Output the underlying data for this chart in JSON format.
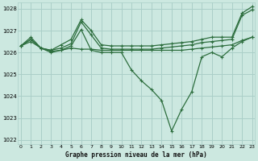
{
  "xlabel": "Graphe pression niveau de la mer (hPa)",
  "bg_color": "#cce8e0",
  "grid_color": "#aacfc8",
  "line_color": "#2d6e3e",
  "ylim": [
    1021.8,
    1028.3
  ],
  "xlim": [
    0,
    23
  ],
  "yticks": [
    1022,
    1023,
    1024,
    1025,
    1026,
    1027,
    1028
  ],
  "xticks": [
    0,
    1,
    2,
    3,
    4,
    5,
    6,
    7,
    8,
    9,
    10,
    11,
    12,
    13,
    14,
    15,
    16,
    17,
    18,
    19,
    20,
    21,
    22,
    23
  ],
  "series": [
    [
      1026.3,
      1026.7,
      1026.2,
      1026.1,
      1026.35,
      1026.6,
      1027.5,
      1027.0,
      1026.35,
      1026.3,
      1026.3,
      1026.3,
      1026.3,
      1026.3,
      1026.35,
      1026.4,
      1026.45,
      1026.5,
      1026.6,
      1026.7,
      1026.7,
      1026.7,
      1027.8,
      1028.1
    ],
    [
      1026.3,
      1026.6,
      1026.2,
      1026.1,
      1026.2,
      1026.4,
      1027.4,
      1026.8,
      1026.2,
      1026.15,
      1026.15,
      1026.15,
      1026.15,
      1026.15,
      1026.2,
      1026.25,
      1026.3,
      1026.35,
      1026.45,
      1026.5,
      1026.55,
      1026.6,
      1027.7,
      1027.95
    ],
    [
      1026.3,
      1026.5,
      1026.2,
      1026.05,
      1026.1,
      1026.2,
      1026.15,
      1026.15,
      1026.1,
      1026.1,
      1026.1,
      1026.1,
      1026.1,
      1026.1,
      1026.1,
      1026.1,
      1026.1,
      1026.15,
      1026.2,
      1026.25,
      1026.3,
      1026.35,
      1026.55,
      1026.7
    ],
    [
      1026.3,
      1026.6,
      1026.2,
      1026.0,
      1026.1,
      1026.3,
      1027.05,
      1026.1,
      1026.0,
      1026.0,
      1026.0,
      1025.2,
      1024.7,
      1024.3,
      1023.8,
      1022.4,
      1023.4,
      1024.2,
      1025.8,
      1026.0,
      1025.8,
      1026.2,
      1026.5,
      1026.7
    ]
  ],
  "markersize": 2.5,
  "linewidth": 0.9
}
